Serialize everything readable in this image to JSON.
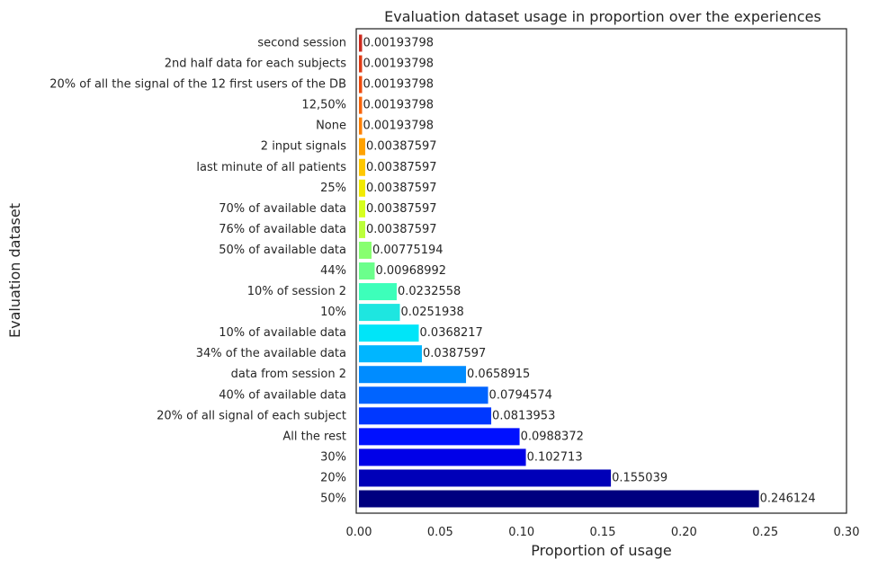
{
  "chart_data": {
    "type": "bar",
    "orientation": "horizontal",
    "title": "Evaluation dataset usage in proportion over the experiences",
    "xlabel": "Proportion of usage",
    "ylabel": "Evaluation dataset",
    "xlim": [
      0,
      0.3
    ],
    "xticks": [
      0.0,
      0.05,
      0.1,
      0.15,
      0.2,
      0.25,
      0.3
    ],
    "xtick_labels": [
      "0.00",
      "0.05",
      "0.10",
      "0.15",
      "0.20",
      "0.25",
      "0.30"
    ],
    "grid": false,
    "colormap": "jet",
    "categories": [
      "second session",
      "2nd half data for each subjects ",
      "20% of all the signal of the 12 first users of the DB",
      "12,50%",
      "None",
      "2 input signals",
      "last minute of all patients",
      "25%",
      "70% of available data",
      "76% of available data",
      "50% of available data",
      "44%",
      "10% of session 2",
      "10%",
      "10% of available data",
      "34% of the available data",
      "data from session 2",
      "40% of available data",
      "20% of all signal of each subject",
      "All the rest",
      "30%",
      "20%",
      "50%"
    ],
    "values": [
      0.00193798,
      0.00193798,
      0.00193798,
      0.00193798,
      0.00193798,
      0.00387597,
      0.00387597,
      0.00387597,
      0.00387597,
      0.00387597,
      0.00775194,
      0.00968992,
      0.0232558,
      0.0251938,
      0.0368217,
      0.0387597,
      0.0658915,
      0.0794574,
      0.0813953,
      0.0988372,
      0.102713,
      0.155039,
      0.246124
    ],
    "value_labels": [
      "0.00193798",
      "0.00193798",
      "0.00193798",
      "0.00193798",
      "0.00193798",
      "0.00387597",
      "0.00387597",
      "0.00387597",
      "0.00387597",
      "0.00387597",
      "0.00775194",
      "0.00968992",
      "0.0232558",
      "0.0251938",
      "0.0368217",
      "0.0387597",
      "0.0658915",
      "0.0794574",
      "0.0813953",
      "0.0988372",
      "0.102713",
      "0.155039",
      "0.246124"
    ],
    "colors": [
      "#cc2a1e",
      "#df3a14",
      "#ee4a0c",
      "#f8640a",
      "#ff8000",
      "#ffa200",
      "#ffc800",
      "#f2ea02",
      "#d6ff1d",
      "#bbff3a",
      "#88ff70",
      "#6bff8c",
      "#3dffba",
      "#1ee6e0",
      "#00e5f8",
      "#00b6ff",
      "#008cff",
      "#0064ff",
      "#0038ff",
      "#0010ff",
      "#0000e8",
      "#0000b8",
      "#00007f"
    ]
  }
}
